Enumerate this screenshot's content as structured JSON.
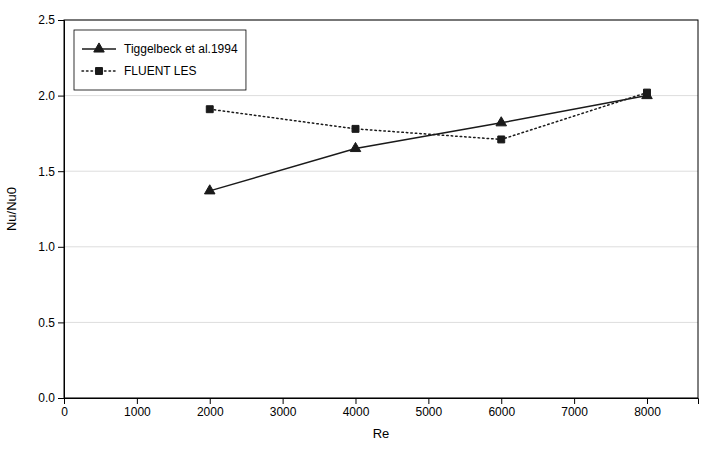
{
  "chart_data": {
    "type": "line",
    "xlabel": "Re",
    "ylabel": "Nu/Nu0",
    "x": [
      2000,
      4000,
      6000,
      8000
    ],
    "series": [
      {
        "name": "Tiggelbeck et al.1994",
        "color": "#1a1a1a",
        "marker": "triangle",
        "line_style": "solid",
        "values": [
          1.37,
          1.65,
          1.82,
          2.0
        ]
      },
      {
        "name": "FLUENT LES",
        "color": "#1a1a1a",
        "marker": "square",
        "line_style": "dotted",
        "values": [
          1.91,
          1.78,
          1.71,
          2.02
        ]
      }
    ],
    "xlim": [
      0,
      8700
    ],
    "ylim": [
      0,
      2.5
    ],
    "xticks": [
      0,
      1000,
      2000,
      3000,
      4000,
      5000,
      6000,
      7000,
      8000
    ],
    "yticks": [
      {
        "value": 0,
        "label": "0.0"
      },
      {
        "value": 0.5,
        "label": "0.5"
      },
      {
        "value": 1.0,
        "label": "1.0"
      },
      {
        "value": 1.5,
        "label": "1.5"
      },
      {
        "value": 2.0,
        "label": "2.0"
      },
      {
        "value": 2.5,
        "label": "2.5"
      }
    ],
    "grid": "y",
    "legend": "upper left"
  }
}
